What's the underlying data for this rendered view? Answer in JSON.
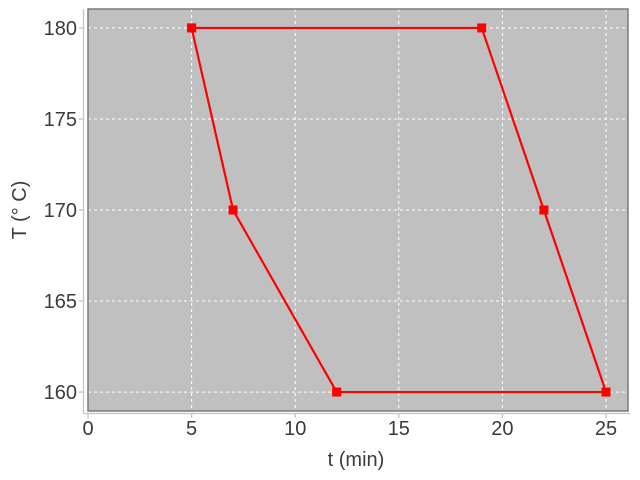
{
  "chart_data": {
    "type": "line",
    "title": "",
    "xlabel": "t (min)",
    "ylabel": "T (° C)",
    "x": [
      5,
      7,
      12,
      25,
      22,
      19,
      5
    ],
    "y": [
      180,
      170,
      160,
      160,
      170,
      180,
      180
    ],
    "xticks": [
      0,
      5,
      10,
      15,
      20,
      25
    ],
    "yticks": [
      160,
      165,
      170,
      175,
      180
    ],
    "xtick_labels": [
      "0",
      "5",
      "10",
      "15",
      "20",
      "25"
    ],
    "ytick_labels": [
      "160",
      "165",
      "170",
      "175",
      "180"
    ],
    "xlim": [
      0,
      26.06
    ],
    "ylim": [
      158.96,
      181.04
    ],
    "grid": true,
    "grid_style": "dashed",
    "legend": false,
    "marker": "square",
    "colors": {
      "line": "#ff0000",
      "marker": "#ff0000",
      "plot_background": "#c0c0c0",
      "outer_background": "#ffffff",
      "grid": "#ffffff",
      "axis": "#c4c4c4",
      "plot_border": "#7a7a7a",
      "text": "#3b3b3b"
    }
  }
}
